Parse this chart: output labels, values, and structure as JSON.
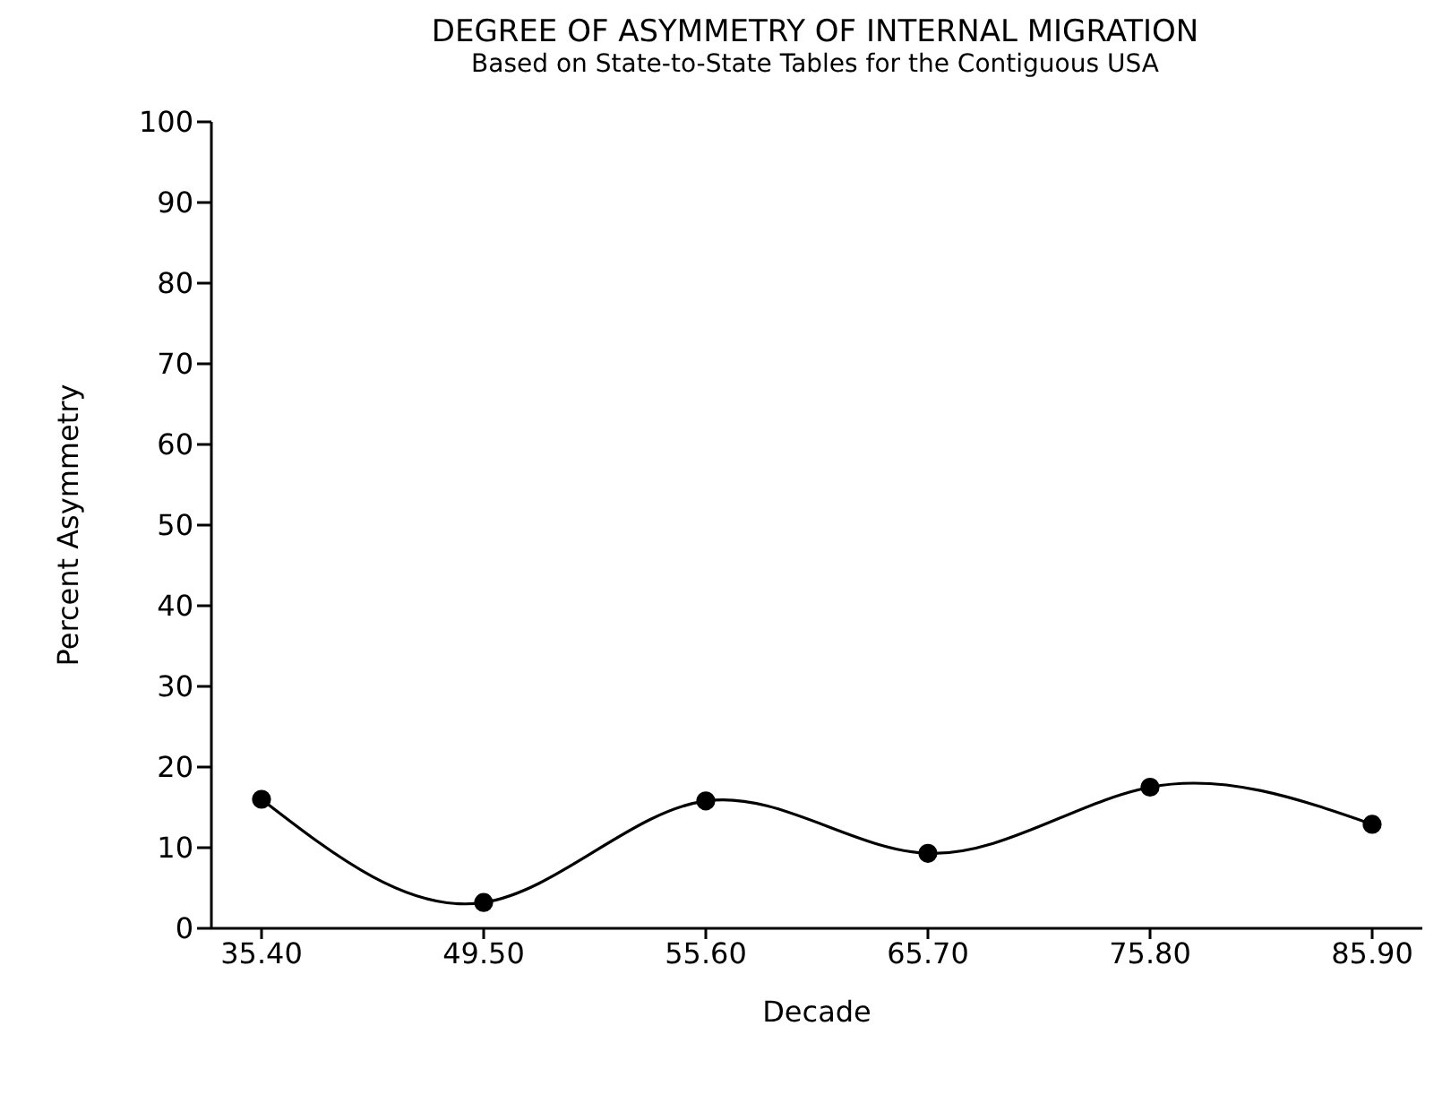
{
  "chart_data": {
    "type": "line",
    "title": "DEGREE OF ASYMMETRY OF INTERNAL MIGRATION",
    "subtitle": "Based on State-to-State Tables for the Contiguous USA",
    "xlabel": "Decade",
    "ylabel": "Percent Asymmetry",
    "categories": [
      "35.40",
      "49.50",
      "55.60",
      "65.70",
      "75.80",
      "85.90"
    ],
    "series": [
      {
        "color": "#000000",
        "values": [
          16.0,
          3.2,
          15.8,
          9.3,
          17.5,
          12.9
        ]
      }
    ],
    "ylim": [
      0,
      100
    ],
    "yticks": [
      0,
      10,
      20,
      30,
      40,
      50,
      60,
      70,
      80,
      90,
      100
    ],
    "grid": false,
    "legend": false,
    "marker": "circle",
    "line_style": "solid"
  }
}
